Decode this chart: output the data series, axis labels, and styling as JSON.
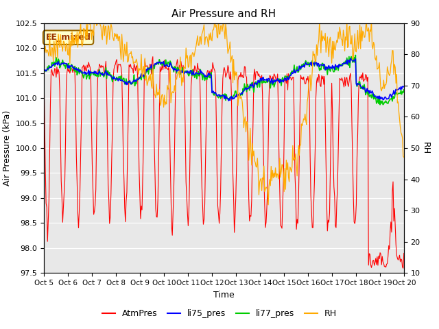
{
  "title": "Air Pressure and RH",
  "xlabel": "Time",
  "ylabel_left": "Air Pressure (kPa)",
  "ylabel_right": "RH",
  "ylim_left": [
    97.5,
    102.5
  ],
  "ylim_right": [
    10,
    90
  ],
  "yticks_left": [
    97.5,
    98.0,
    98.5,
    99.0,
    99.5,
    100.0,
    100.5,
    101.0,
    101.5,
    102.0,
    102.5
  ],
  "yticks_right": [
    10,
    20,
    30,
    40,
    50,
    60,
    70,
    80,
    90
  ],
  "xtick_labels": [
    "Oct 5",
    "Oct 6",
    "Oct 7",
    "Oct 8",
    "Oct 9",
    "Oct 10",
    "Oct 11",
    "Oct 12",
    "Oct 13",
    "Oct 14",
    "Oct 15",
    "Oct 16",
    "Oct 17",
    "Oct 18",
    "Oct 19",
    "Oct 20"
  ],
  "bg_color": "#e8e8e8",
  "annotation_text": "EE_mixed",
  "annotation_bg": "#ffffcc",
  "annotation_border": "#996600",
  "annotation_text_color": "#993300",
  "colors": {
    "AtmPres": "#ff0000",
    "li75_pres": "#0000ff",
    "li77_pres": "#00cc00",
    "RH": "#ffaa00"
  },
  "legend_labels": [
    "AtmPres",
    "li75_pres",
    "li77_pres",
    "RH"
  ],
  "seed": 42,
  "n_points": 500
}
